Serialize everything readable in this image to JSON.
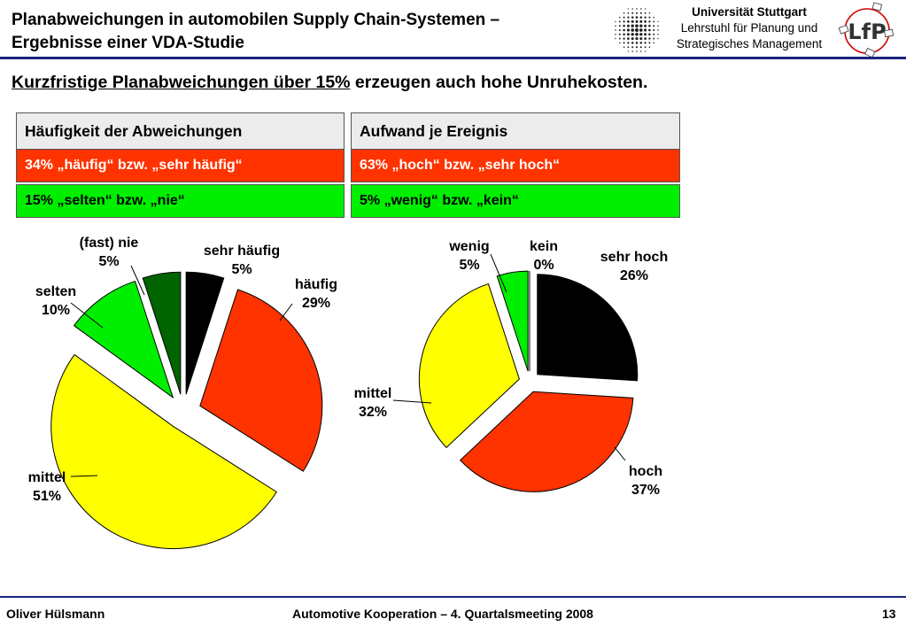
{
  "header": {
    "title_line1": "Planabweichungen in automobilen Supply Chain-Systemen –",
    "title_line2": "Ergebnisse einer VDA-Studie",
    "university": "Universität Stuttgart",
    "chair_line1": "Lehrstuhl für Planung und",
    "chair_line2": "Strategisches Management",
    "logo_text": "LfP"
  },
  "headline": {
    "underlined": "Kurzfristige Planabweichungen über 15%",
    "rest": " erzeugen auch hohe Unruhekosten."
  },
  "boxes": {
    "left": {
      "header": "Häufigkeit der Abweichungen",
      "high": "34% „häufig“ bzw. „sehr häufig“",
      "low": "15% „selten“ bzw. „nie“"
    },
    "right": {
      "header": "Aufwand je Ereignis",
      "high": "63% „hoch“ bzw. „sehr hoch“",
      "low": "5% „wenig“ bzw. „kein“"
    }
  },
  "chart_data": [
    {
      "type": "pie",
      "title": "",
      "slices": [
        {
          "label": "sehr häufig",
          "value": 5,
          "value_label": "5%",
          "color": "#000000"
        },
        {
          "label": "häufig",
          "value": 29,
          "value_label": "29%",
          "color": "#ff3300"
        },
        {
          "label": "mittel",
          "value": 51,
          "value_label": "51%",
          "color": "#ffff00"
        },
        {
          "label": "selten",
          "value": 10,
          "value_label": "10%",
          "color": "#00ee00"
        },
        {
          "label": "(fast) nie",
          "value": 5,
          "value_label": "5%",
          "color": "#006400"
        }
      ],
      "exploded": true
    },
    {
      "type": "pie",
      "title": "",
      "slices": [
        {
          "label": "sehr hoch",
          "value": 26,
          "value_label": "26%",
          "color": "#000000"
        },
        {
          "label": "hoch",
          "value": 37,
          "value_label": "37%",
          "color": "#ff3300"
        },
        {
          "label": "mittel",
          "value": 32,
          "value_label": "32%",
          "color": "#ffff00"
        },
        {
          "label": "wenig",
          "value": 5,
          "value_label": "5%",
          "color": "#00ee00"
        },
        {
          "label": "kein",
          "value": 0,
          "value_label": "0%",
          "color": "#006400"
        }
      ],
      "exploded": true
    }
  ],
  "footer": {
    "author": "Oliver Hülsmann",
    "event": "Automotive Kooperation – 4. Quartalsmeeting 2008",
    "page": "13"
  }
}
